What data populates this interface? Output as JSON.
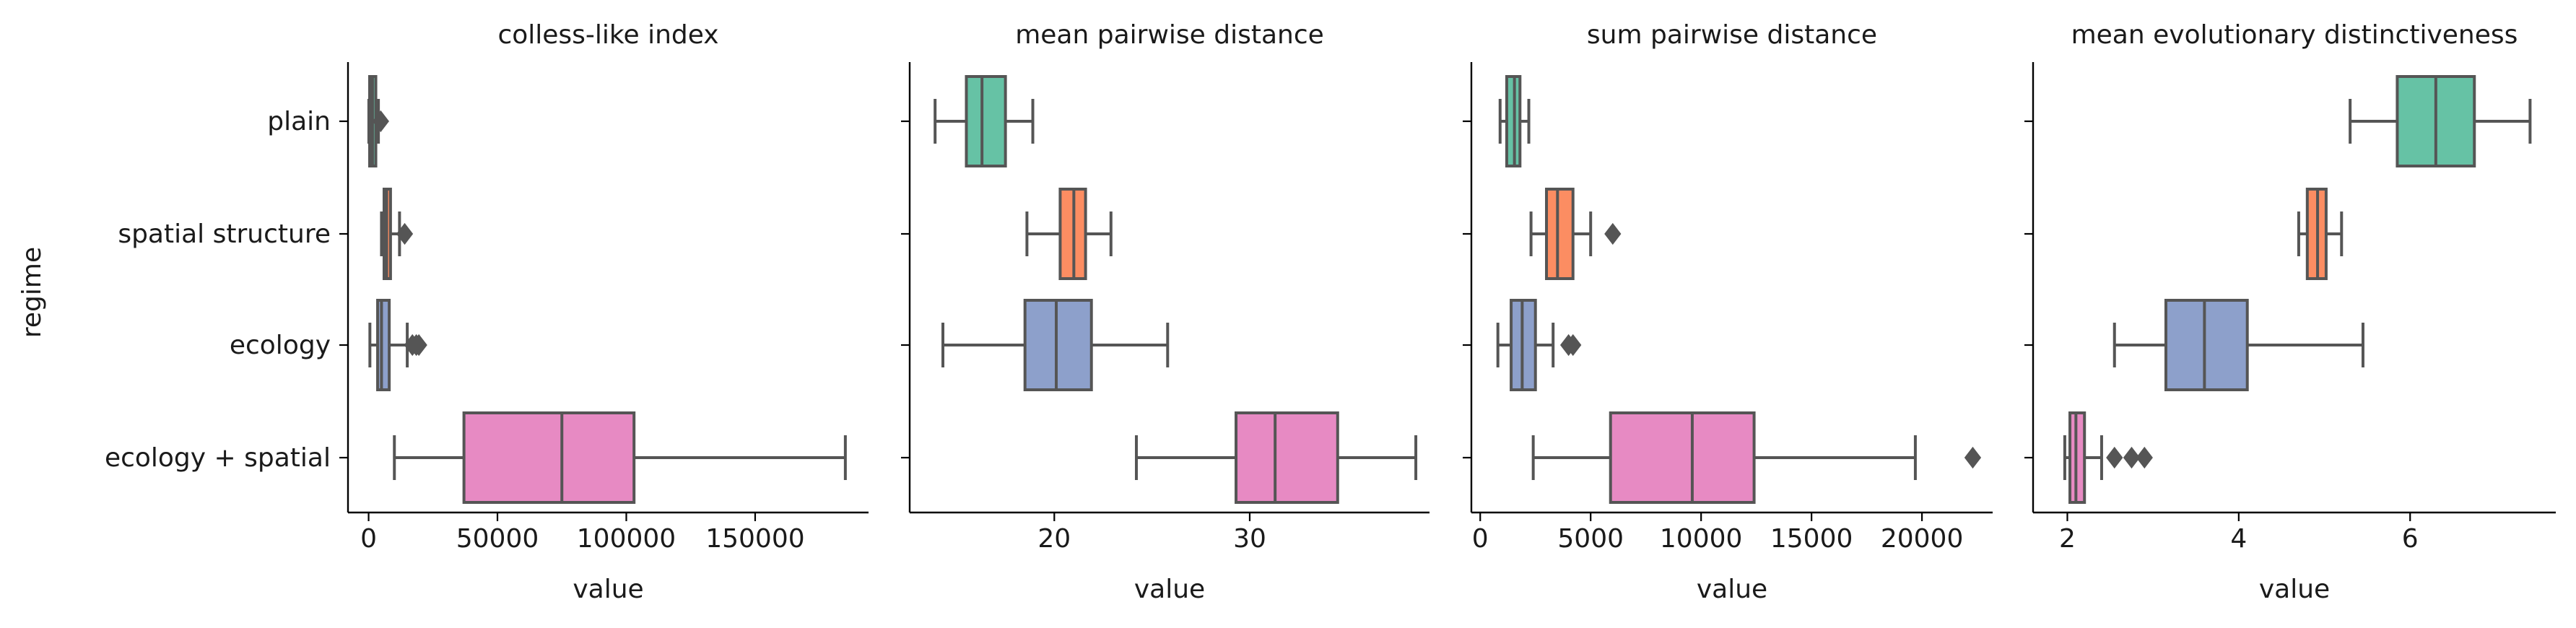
{
  "figure": {
    "ylabel": "regime",
    "categories": [
      "plain",
      "spatial structure",
      "ecology",
      "ecology + spatial"
    ],
    "colors": [
      "#66c2a5",
      "#fc8d62",
      "#8da0cb",
      "#e78ac3"
    ],
    "edge_color": "#555555"
  },
  "chart_data": [
    {
      "type": "box",
      "title": "colless-like index",
      "xlabel": "value",
      "xlim": [
        -8000,
        194000
      ],
      "xticks": [
        0,
        50000,
        100000,
        150000
      ],
      "xtick_labels": [
        "0",
        "50000",
        "100000",
        "150000"
      ],
      "boxes": [
        {
          "category": "plain",
          "whisker_low": 100,
          "q1": 400,
          "median": 1500,
          "q3": 2800,
          "whisker_high": 3800,
          "outliers": [
            4700
          ]
        },
        {
          "category": "spatial structure",
          "whisker_low": 5000,
          "q1": 6000,
          "median": 7000,
          "q3": 8500,
          "whisker_high": 12000,
          "outliers": [
            14000
          ]
        },
        {
          "category": "ecology",
          "whisker_low": 500,
          "q1": 3500,
          "median": 5000,
          "q3": 8000,
          "whisker_high": 15000,
          "outliers": [
            17000,
            18500,
            19500
          ]
        },
        {
          "category": "ecology + spatial",
          "whisker_low": 10000,
          "q1": 37000,
          "median": 75000,
          "q3": 103000,
          "whisker_high": 185000,
          "outliers": []
        }
      ]
    },
    {
      "type": "box",
      "title": "mean pairwise distance",
      "xlabel": "value",
      "xlim": [
        12.6,
        39.2
      ],
      "xticks": [
        20,
        30
      ],
      "xtick_labels": [
        "20",
        "30"
      ],
      "boxes": [
        {
          "category": "plain",
          "whisker_low": 13.9,
          "q1": 15.5,
          "median": 16.3,
          "q3": 17.5,
          "whisker_high": 18.9,
          "outliers": []
        },
        {
          "category": "spatial structure",
          "whisker_low": 18.6,
          "q1": 20.3,
          "median": 21.0,
          "q3": 21.6,
          "whisker_high": 22.9,
          "outliers": []
        },
        {
          "category": "ecology",
          "whisker_low": 14.3,
          "q1": 18.5,
          "median": 20.1,
          "q3": 21.9,
          "whisker_high": 25.8,
          "outliers": []
        },
        {
          "category": "ecology + spatial",
          "whisker_low": 24.2,
          "q1": 29.3,
          "median": 31.3,
          "q3": 34.5,
          "whisker_high": 38.5,
          "outliers": []
        }
      ]
    },
    {
      "type": "box",
      "title": "sum pairwise distance",
      "xlabel": "value",
      "xlim": [
        -400,
        23200
      ],
      "xticks": [
        0,
        5000,
        10000,
        15000,
        20000
      ],
      "xtick_labels": [
        "0",
        "5000",
        "10000",
        "15000",
        "20000"
      ],
      "boxes": [
        {
          "category": "plain",
          "whisker_low": 900,
          "q1": 1200,
          "median": 1550,
          "q3": 1800,
          "whisker_high": 2200,
          "outliers": []
        },
        {
          "category": "spatial structure",
          "whisker_low": 2300,
          "q1": 3000,
          "median": 3500,
          "q3": 4200,
          "whisker_high": 5000,
          "outliers": [
            6000
          ]
        },
        {
          "category": "ecology",
          "whisker_low": 800,
          "q1": 1400,
          "median": 1900,
          "q3": 2500,
          "whisker_high": 3300,
          "outliers": [
            4000,
            4200
          ]
        },
        {
          "category": "ecology + spatial",
          "whisker_low": 2400,
          "q1": 5900,
          "median": 9600,
          "q3": 12400,
          "whisker_high": 19700,
          "outliers": [
            22300
          ]
        }
      ]
    },
    {
      "type": "box",
      "title": "mean evolutionary distinctiveness",
      "xlabel": "value",
      "xlim": [
        1.6,
        7.7
      ],
      "xticks": [
        2,
        4,
        6
      ],
      "xtick_labels": [
        "2",
        "4",
        "6"
      ],
      "boxes": [
        {
          "category": "plain",
          "whisker_low": 5.3,
          "q1": 5.85,
          "median": 6.3,
          "q3": 6.75,
          "whisker_high": 7.4,
          "outliers": []
        },
        {
          "category": "spatial structure",
          "whisker_low": 4.7,
          "q1": 4.8,
          "median": 4.92,
          "q3": 5.02,
          "whisker_high": 5.2,
          "outliers": []
        },
        {
          "category": "ecology",
          "whisker_low": 2.55,
          "q1": 3.15,
          "median": 3.6,
          "q3": 4.1,
          "whisker_high": 5.45,
          "outliers": []
        },
        {
          "category": "ecology + spatial",
          "whisker_low": 1.97,
          "q1": 2.03,
          "median": 2.1,
          "q3": 2.2,
          "whisker_high": 2.4,
          "outliers": [
            2.55,
            2.75,
            2.9
          ]
        }
      ]
    }
  ]
}
